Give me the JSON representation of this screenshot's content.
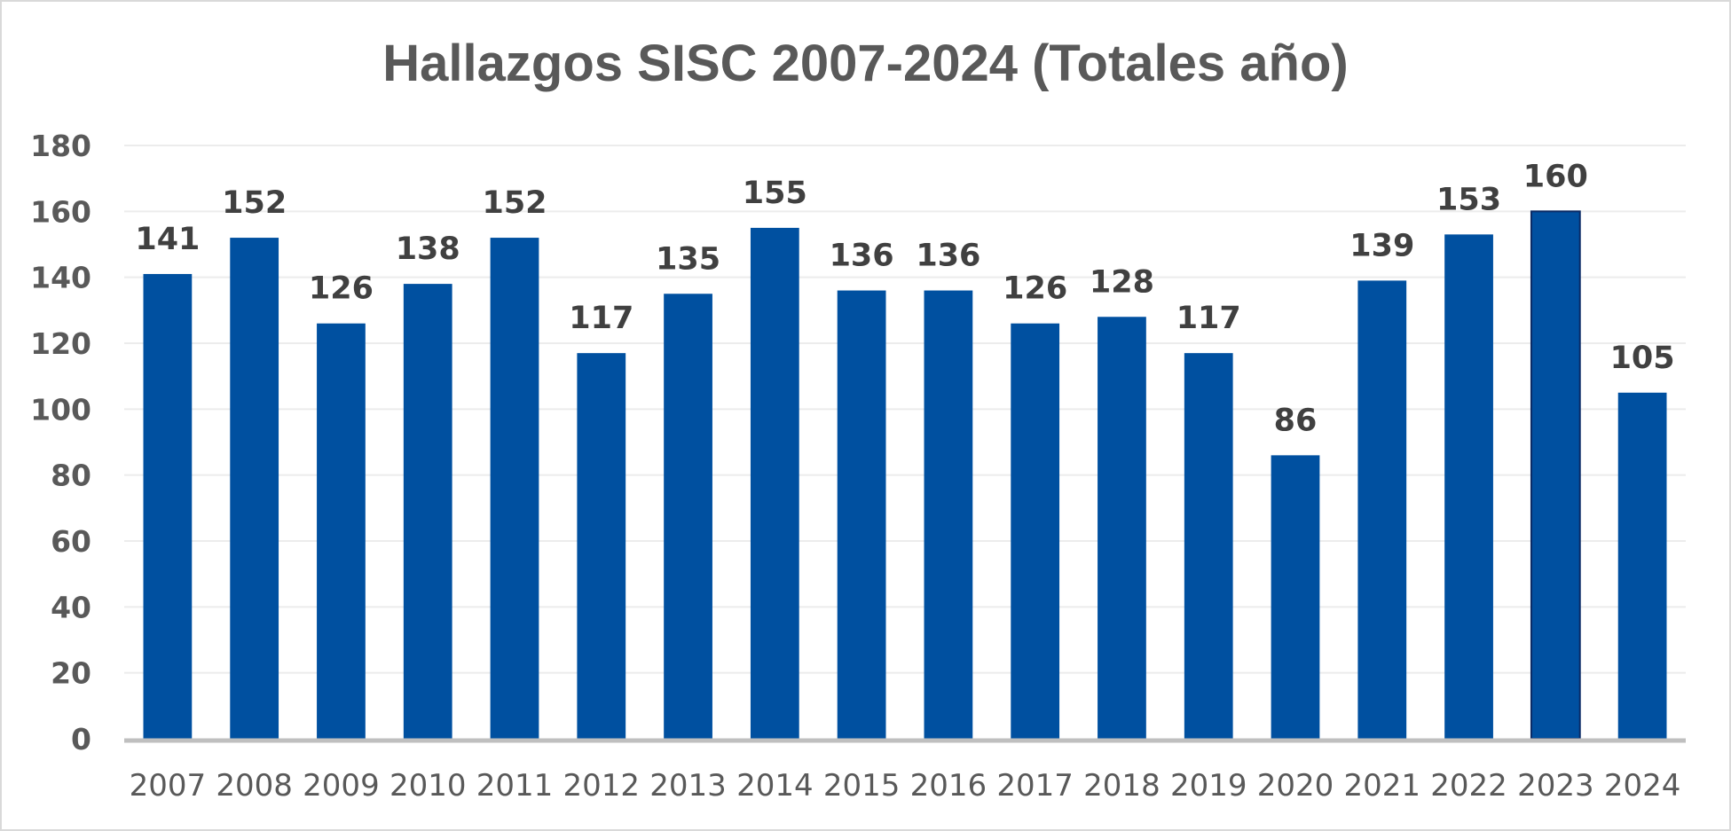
{
  "chart_data": {
    "type": "bar",
    "title": "Hallazgos SISC 2007-2024 (Totales año)",
    "xlabel": "",
    "ylabel": "",
    "categories": [
      "2007",
      "2008",
      "2009",
      "2010",
      "2011",
      "2012",
      "2013",
      "2014",
      "2015",
      "2016",
      "2017",
      "2018",
      "2019",
      "2020",
      "2021",
      "2022",
      "2023",
      "2024"
    ],
    "values": [
      141,
      152,
      126,
      138,
      152,
      117,
      135,
      155,
      136,
      136,
      126,
      128,
      117,
      86,
      139,
      153,
      160,
      105
    ],
    "ylim": [
      0,
      180
    ],
    "yticks": [
      0,
      20,
      40,
      60,
      80,
      100,
      120,
      140,
      160,
      180
    ],
    "grid": true,
    "legend": "none",
    "bar_color": "#0050A0",
    "highlight_index": 16,
    "highlight_outline": "#0a2a66",
    "gridline_color": "#ececec",
    "axis_color": "#bfbfbf"
  }
}
